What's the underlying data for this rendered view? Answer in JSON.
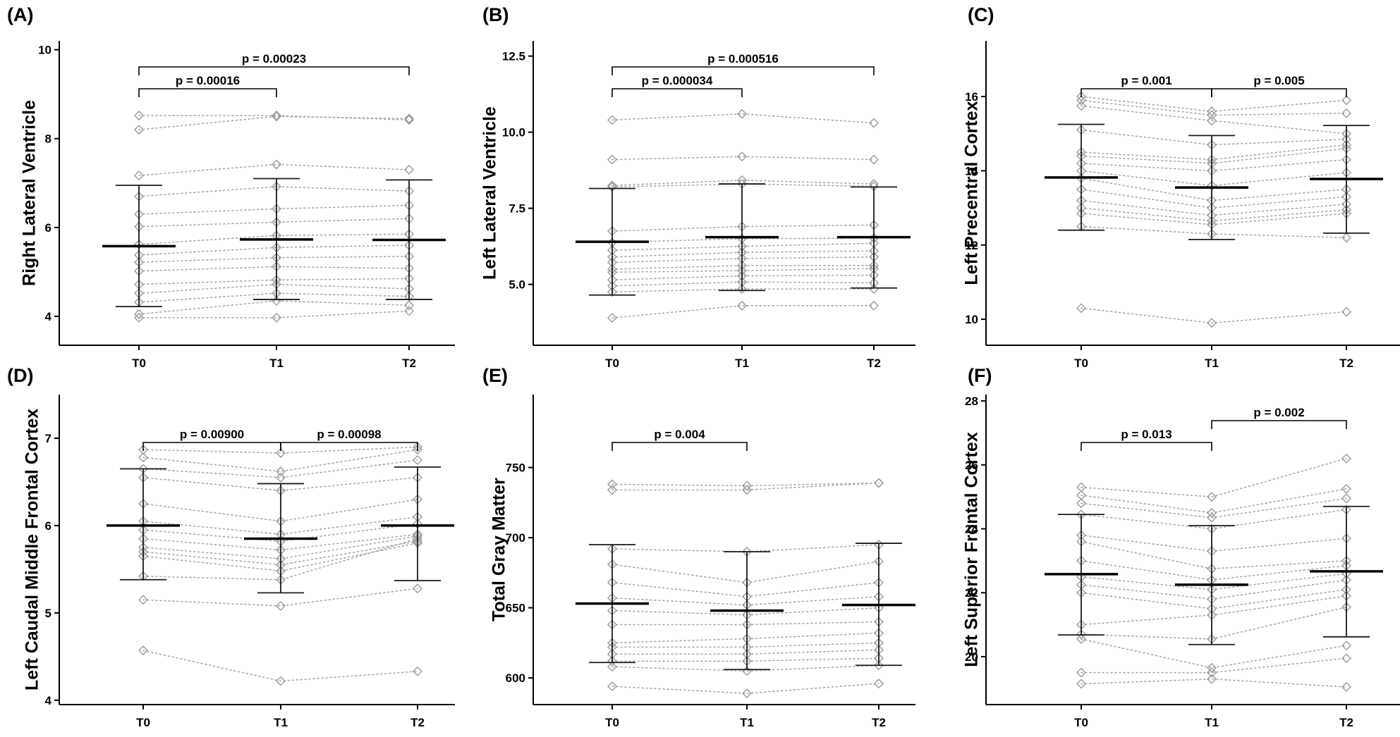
{
  "chart_data": [
    {
      "type": "scatter",
      "panel": "(A)",
      "ylabel": "Right Lateral Ventricle",
      "categories": [
        "T0",
        "T1",
        "T2"
      ],
      "ylim": [
        3.35,
        10.2
      ],
      "yticks": [
        4,
        6,
        8,
        10
      ],
      "ytick_labels": [
        "4",
        "6",
        "8",
        "10"
      ],
      "subjects": [
        [
          8.52,
          8.52,
          8.42
        ],
        [
          8.2,
          8.5,
          8.45
        ],
        [
          7.17,
          7.42,
          7.3
        ],
        [
          6.7,
          6.92,
          6.82
        ],
        [
          6.3,
          6.42,
          6.5
        ],
        [
          6.02,
          6.12,
          6.2
        ],
        [
          5.62,
          5.82,
          5.85
        ],
        [
          5.38,
          5.55,
          5.6
        ],
        [
          5.22,
          5.32,
          5.35
        ],
        [
          5.02,
          5.12,
          5.08
        ],
        [
          4.72,
          4.82,
          4.85
        ],
        [
          4.52,
          4.72,
          4.62
        ],
        [
          4.32,
          4.52,
          4.45
        ],
        [
          4.05,
          4.35,
          4.25
        ],
        [
          3.97,
          3.97,
          4.12
        ]
      ],
      "mean": [
        5.58,
        5.73,
        5.72
      ],
      "error_low": [
        4.22,
        4.38,
        4.38
      ],
      "error_high": [
        6.95,
        7.1,
        7.07
      ],
      "comparisons": [
        {
          "from": "T0",
          "to": "T1",
          "label": "p = 0.00016",
          "level": 0
        },
        {
          "from": "T0",
          "to": "T2",
          "label": "p = 0.00023",
          "level": 1
        }
      ]
    },
    {
      "type": "scatter",
      "panel": "(B)",
      "ylabel": "Left Lateral Ventricle",
      "categories": [
        "T0",
        "T1",
        "T2"
      ],
      "ylim": [
        3.0,
        13.0
      ],
      "yticks": [
        5,
        7.5,
        10,
        12.5
      ],
      "ytick_labels": [
        "5.0",
        "7.5",
        "10.0",
        "12.5"
      ],
      "subjects": [
        [
          10.4,
          10.6,
          10.3
        ],
        [
          9.1,
          9.2,
          9.1
        ],
        [
          8.25,
          8.42,
          8.3
        ],
        [
          8.2,
          8.3,
          8.22
        ],
        [
          6.75,
          6.9,
          6.95
        ],
        [
          6.38,
          6.5,
          6.52
        ],
        [
          6.12,
          6.25,
          6.35
        ],
        [
          5.9,
          6.05,
          6.1
        ],
        [
          5.72,
          5.85,
          5.9
        ],
        [
          5.5,
          5.62,
          5.62
        ],
        [
          5.4,
          5.45,
          5.52
        ],
        [
          5.15,
          5.28,
          5.3
        ],
        [
          4.95,
          5.08,
          5.05
        ],
        [
          4.75,
          4.85,
          4.85
        ],
        [
          3.9,
          4.3,
          4.3
        ]
      ],
      "mean": [
        6.4,
        6.55,
        6.55
      ],
      "error_low": [
        4.65,
        4.8,
        4.88
      ],
      "error_high": [
        8.15,
        8.3,
        8.2
      ],
      "comparisons": [
        {
          "from": "T0",
          "to": "T1",
          "label": "p = 0.000034",
          "level": 0
        },
        {
          "from": "T0",
          "to": "T2",
          "label": "p = 0.000516",
          "level": 1
        }
      ]
    },
    {
      "type": "scatter",
      "panel": "(C)",
      "ylabel": "Left Precentral Cortex",
      "categories": [
        "T0",
        "T1",
        "T2"
      ],
      "ylim": [
        9.3,
        17.5
      ],
      "yticks": [
        10,
        12,
        14,
        16
      ],
      "ytick_labels": [
        "10",
        "12",
        "14",
        "16"
      ],
      "subjects": [
        [
          16.0,
          15.6,
          15.9
        ],
        [
          15.9,
          15.5,
          15.55
        ],
        [
          15.75,
          15.35,
          15.0
        ],
        [
          15.1,
          14.7,
          14.85
        ],
        [
          14.5,
          14.3,
          14.7
        ],
        [
          14.4,
          14.2,
          14.6
        ],
        [
          14.2,
          14.0,
          14.3
        ],
        [
          14.0,
          13.6,
          13.95
        ],
        [
          13.8,
          13.2,
          13.5
        ],
        [
          13.5,
          13.0,
          13.3
        ],
        [
          13.2,
          12.8,
          13.1
        ],
        [
          13.0,
          12.65,
          12.95
        ],
        [
          12.85,
          12.55,
          12.85
        ],
        [
          12.5,
          12.3,
          12.2
        ],
        [
          10.3,
          9.9,
          10.2
        ]
      ],
      "mean": [
        13.82,
        13.55,
        13.78
      ],
      "error_low": [
        12.4,
        12.15,
        12.32
      ],
      "error_high": [
        15.25,
        14.95,
        15.22
      ],
      "comparisons": [
        {
          "from": "T0",
          "to": "T1",
          "label": "p = 0.001",
          "level": 0
        },
        {
          "from": "T1",
          "to": "T2",
          "label": "p = 0.005",
          "level": 0
        }
      ]
    },
    {
      "type": "scatter",
      "panel": "(D)",
      "ylabel": "Left Caudal Middle Frontal Cortex",
      "categories": [
        "T0",
        "T1",
        "T2"
      ],
      "ylim": [
        3.95,
        7.5
      ],
      "yticks": [
        4,
        5,
        6,
        7
      ],
      "ytick_labels": [
        "4",
        "5",
        "6",
        "7"
      ],
      "subjects": [
        [
          6.87,
          6.83,
          6.9
        ],
        [
          6.78,
          6.62,
          6.87
        ],
        [
          6.65,
          6.55,
          6.75
        ],
        [
          6.55,
          6.4,
          6.55
        ],
        [
          6.25,
          6.05,
          6.3
        ],
        [
          6.05,
          5.9,
          6.1
        ],
        [
          5.95,
          5.82,
          6.02
        ],
        [
          5.85,
          5.72,
          5.9
        ],
        [
          5.75,
          5.62,
          5.88
        ],
        [
          5.7,
          5.55,
          5.82
        ],
        [
          5.65,
          5.48,
          5.8
        ],
        [
          5.42,
          5.38,
          5.85
        ],
        [
          5.15,
          5.08,
          5.28
        ],
        [
          4.57,
          4.22,
          4.33
        ]
      ],
      "mean": [
        6.0,
        5.85,
        6.0
      ],
      "error_low": [
        5.38,
        5.23,
        5.37
      ],
      "error_high": [
        6.65,
        6.48,
        6.67
      ],
      "comparisons": [
        {
          "from": "T0",
          "to": "T1",
          "label": "p = 0.00900",
          "level": 0
        },
        {
          "from": "T1",
          "to": "T2",
          "label": "p = 0.00098",
          "level": 0
        }
      ]
    },
    {
      "type": "scatter",
      "panel": "(E)",
      "ylabel": "Total Gray Matter",
      "categories": [
        "T0",
        "T1",
        "T2"
      ],
      "ylim": [
        581,
        802
      ],
      "yticks": [
        600,
        650,
        700,
        750
      ],
      "ytick_labels": [
        "600",
        "650",
        "700",
        "750"
      ],
      "subjects": [
        [
          738,
          737,
          739
        ],
        [
          734,
          734,
          739
        ],
        [
          692,
          690,
          695
        ],
        [
          681,
          668,
          683
        ],
        [
          668,
          658,
          668
        ],
        [
          657,
          652,
          658
        ],
        [
          648,
          645,
          650
        ],
        [
          638,
          638,
          640
        ],
        [
          625,
          628,
          632
        ],
        [
          622,
          622,
          625
        ],
        [
          617,
          617,
          620
        ],
        [
          612,
          612,
          614
        ],
        [
          608,
          605,
          609
        ],
        [
          594,
          589,
          596
        ]
      ],
      "mean": [
        653,
        648,
        652
      ],
      "error_low": [
        611,
        606,
        609
      ],
      "error_high": [
        695,
        690,
        696
      ],
      "comparisons": [
        {
          "from": "T0",
          "to": "T1",
          "label": "p = 0.004",
          "level": 0
        }
      ]
    },
    {
      "type": "scatter",
      "panel": "(F)",
      "ylabel": "Left Superior Frontal Cortex",
      "categories": [
        "T0",
        "T1",
        "T2"
      ],
      "ylim": [
        18.5,
        28.2
      ],
      "yticks": [
        20,
        22,
        24,
        26,
        28
      ],
      "ytick_labels": [
        "20",
        "22",
        "24",
        "26",
        "28"
      ],
      "subjects": [
        [
          25.3,
          25.0,
          26.2
        ],
        [
          25.05,
          24.5,
          25.25
        ],
        [
          24.8,
          24.35,
          24.95
        ],
        [
          24.45,
          24.0,
          24.6
        ],
        [
          23.8,
          23.3,
          23.7
        ],
        [
          23.6,
          22.75,
          23.0
        ],
        [
          23.0,
          22.4,
          22.85
        ],
        [
          22.5,
          22.1,
          22.6
        ],
        [
          22.25,
          21.8,
          22.4
        ],
        [
          22.0,
          21.5,
          22.1
        ],
        [
          21.0,
          21.3,
          21.9
        ],
        [
          20.7,
          20.55,
          21.55
        ],
        [
          20.55,
          19.65,
          20.35
        ],
        [
          19.5,
          19.5,
          19.95
        ],
        [
          19.15,
          19.3,
          19.05
        ]
      ],
      "mean": [
        22.58,
        22.25,
        22.67
      ],
      "error_low": [
        20.68,
        20.38,
        20.62
      ],
      "error_high": [
        24.45,
        24.1,
        24.7
      ],
      "comparisons": [
        {
          "from": "T0",
          "to": "T1",
          "label": "p = 0.013",
          "level": 0
        },
        {
          "from": "T1",
          "to": "T2",
          "label": "p = 0.002",
          "level": 1
        }
      ]
    }
  ]
}
